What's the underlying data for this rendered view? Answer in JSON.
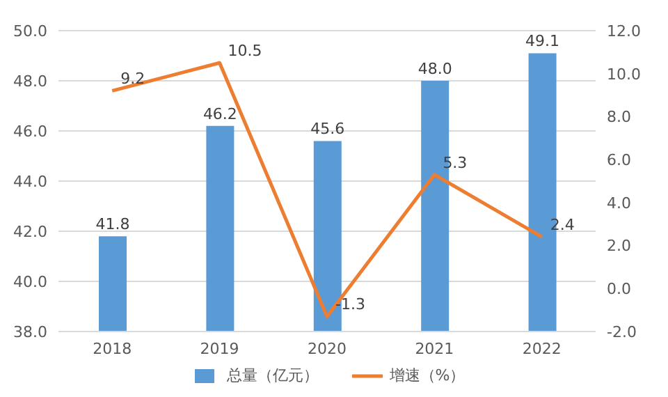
{
  "chart_data": {
    "type": "bar",
    "categories": [
      "2018",
      "2019",
      "2020",
      "2021",
      "2022"
    ],
    "series": [
      {
        "name": "总量（亿元）",
        "color": "#5b9bd5",
        "values": [
          41.8,
          46.2,
          45.6,
          48.0,
          49.1
        ],
        "value_labels": [
          "41.8",
          "46.2",
          "45.6",
          "48.0",
          "49.1"
        ]
      },
      {
        "name": "增速（%）",
        "type": "line",
        "axis": "y2",
        "color": "#ed7d31",
        "values": [
          9.2,
          10.5,
          -1.3,
          5.3,
          2.4
        ],
        "value_labels": [
          "9.2",
          "10.5",
          "-1.3",
          "5.3",
          "2.4"
        ]
      }
    ],
    "ylim": [
      38,
      50
    ],
    "yticks": [
      {
        "value": 38,
        "label": "38.0"
      },
      {
        "value": 40,
        "label": "40.0"
      },
      {
        "value": 42,
        "label": "42.0"
      },
      {
        "value": 44,
        "label": "44.0"
      },
      {
        "value": 46,
        "label": "46.0"
      },
      {
        "value": 48,
        "label": "48.0"
      },
      {
        "value": 50,
        "label": "50.0"
      }
    ],
    "y2lim": [
      -2,
      12
    ],
    "y2ticks": [
      {
        "value": -2,
        "label": "-2.0"
      },
      {
        "value": 0,
        "label": "0.0"
      },
      {
        "value": 2,
        "label": "2.0"
      },
      {
        "value": 4,
        "label": "4.0"
      },
      {
        "value": 6,
        "label": "6.0"
      },
      {
        "value": 8,
        "label": "8.0"
      },
      {
        "value": 10,
        "label": "10.0"
      },
      {
        "value": 12,
        "label": "12.0"
      }
    ],
    "grid": "y",
    "legend": "bottom",
    "marker": "none",
    "line_style": "solid"
  }
}
